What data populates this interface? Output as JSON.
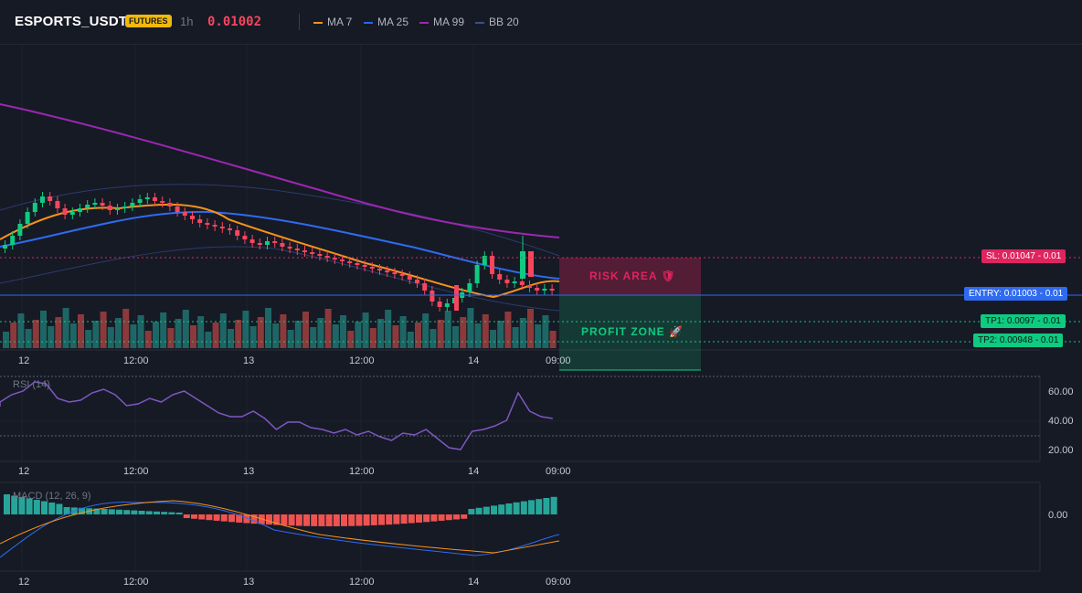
{
  "header": {
    "symbol": "ESPORTS_USDT",
    "badge": "FUTURES",
    "timeframe": "1h",
    "price": "0.01002",
    "legend": [
      {
        "label": "MA 7",
        "color": "#f7931a"
      },
      {
        "label": "MA 25",
        "color": "#2962ff"
      },
      {
        "label": "MA 99",
        "color": "#9c27b0"
      },
      {
        "label": "BB 20",
        "color": "#2b3b6e"
      }
    ]
  },
  "levels": {
    "sl": "SL: 0.01047 - 0.01",
    "entry": "ENTRY: 0.01003 - 0.01",
    "tp1": "TP1: 0.0097 - 0.01",
    "tp2": "TP2: 0.00948 - 0.01"
  },
  "zones": {
    "risk": "RISK AREA 🛡",
    "profit": "PROFIT ZONE 🚀"
  },
  "time_axis": [
    "12",
    "12:00",
    "13",
    "12:00",
    "14",
    "09:00"
  ],
  "rsi": {
    "label": "RSI (14)",
    "ticks": [
      "60.00",
      "40.00",
      "20.00"
    ]
  },
  "macd": {
    "label": "MACD (12, 26, 9)",
    "tick": "0.00"
  },
  "colors": {
    "up": "#0ecb81",
    "down": "#f6465d",
    "ma7": "#f7931a",
    "ma25": "#2f6bf0",
    "ma99": "#9c27b0",
    "bb": "#2b3b6e",
    "rsi": "#7e57c2"
  }
}
